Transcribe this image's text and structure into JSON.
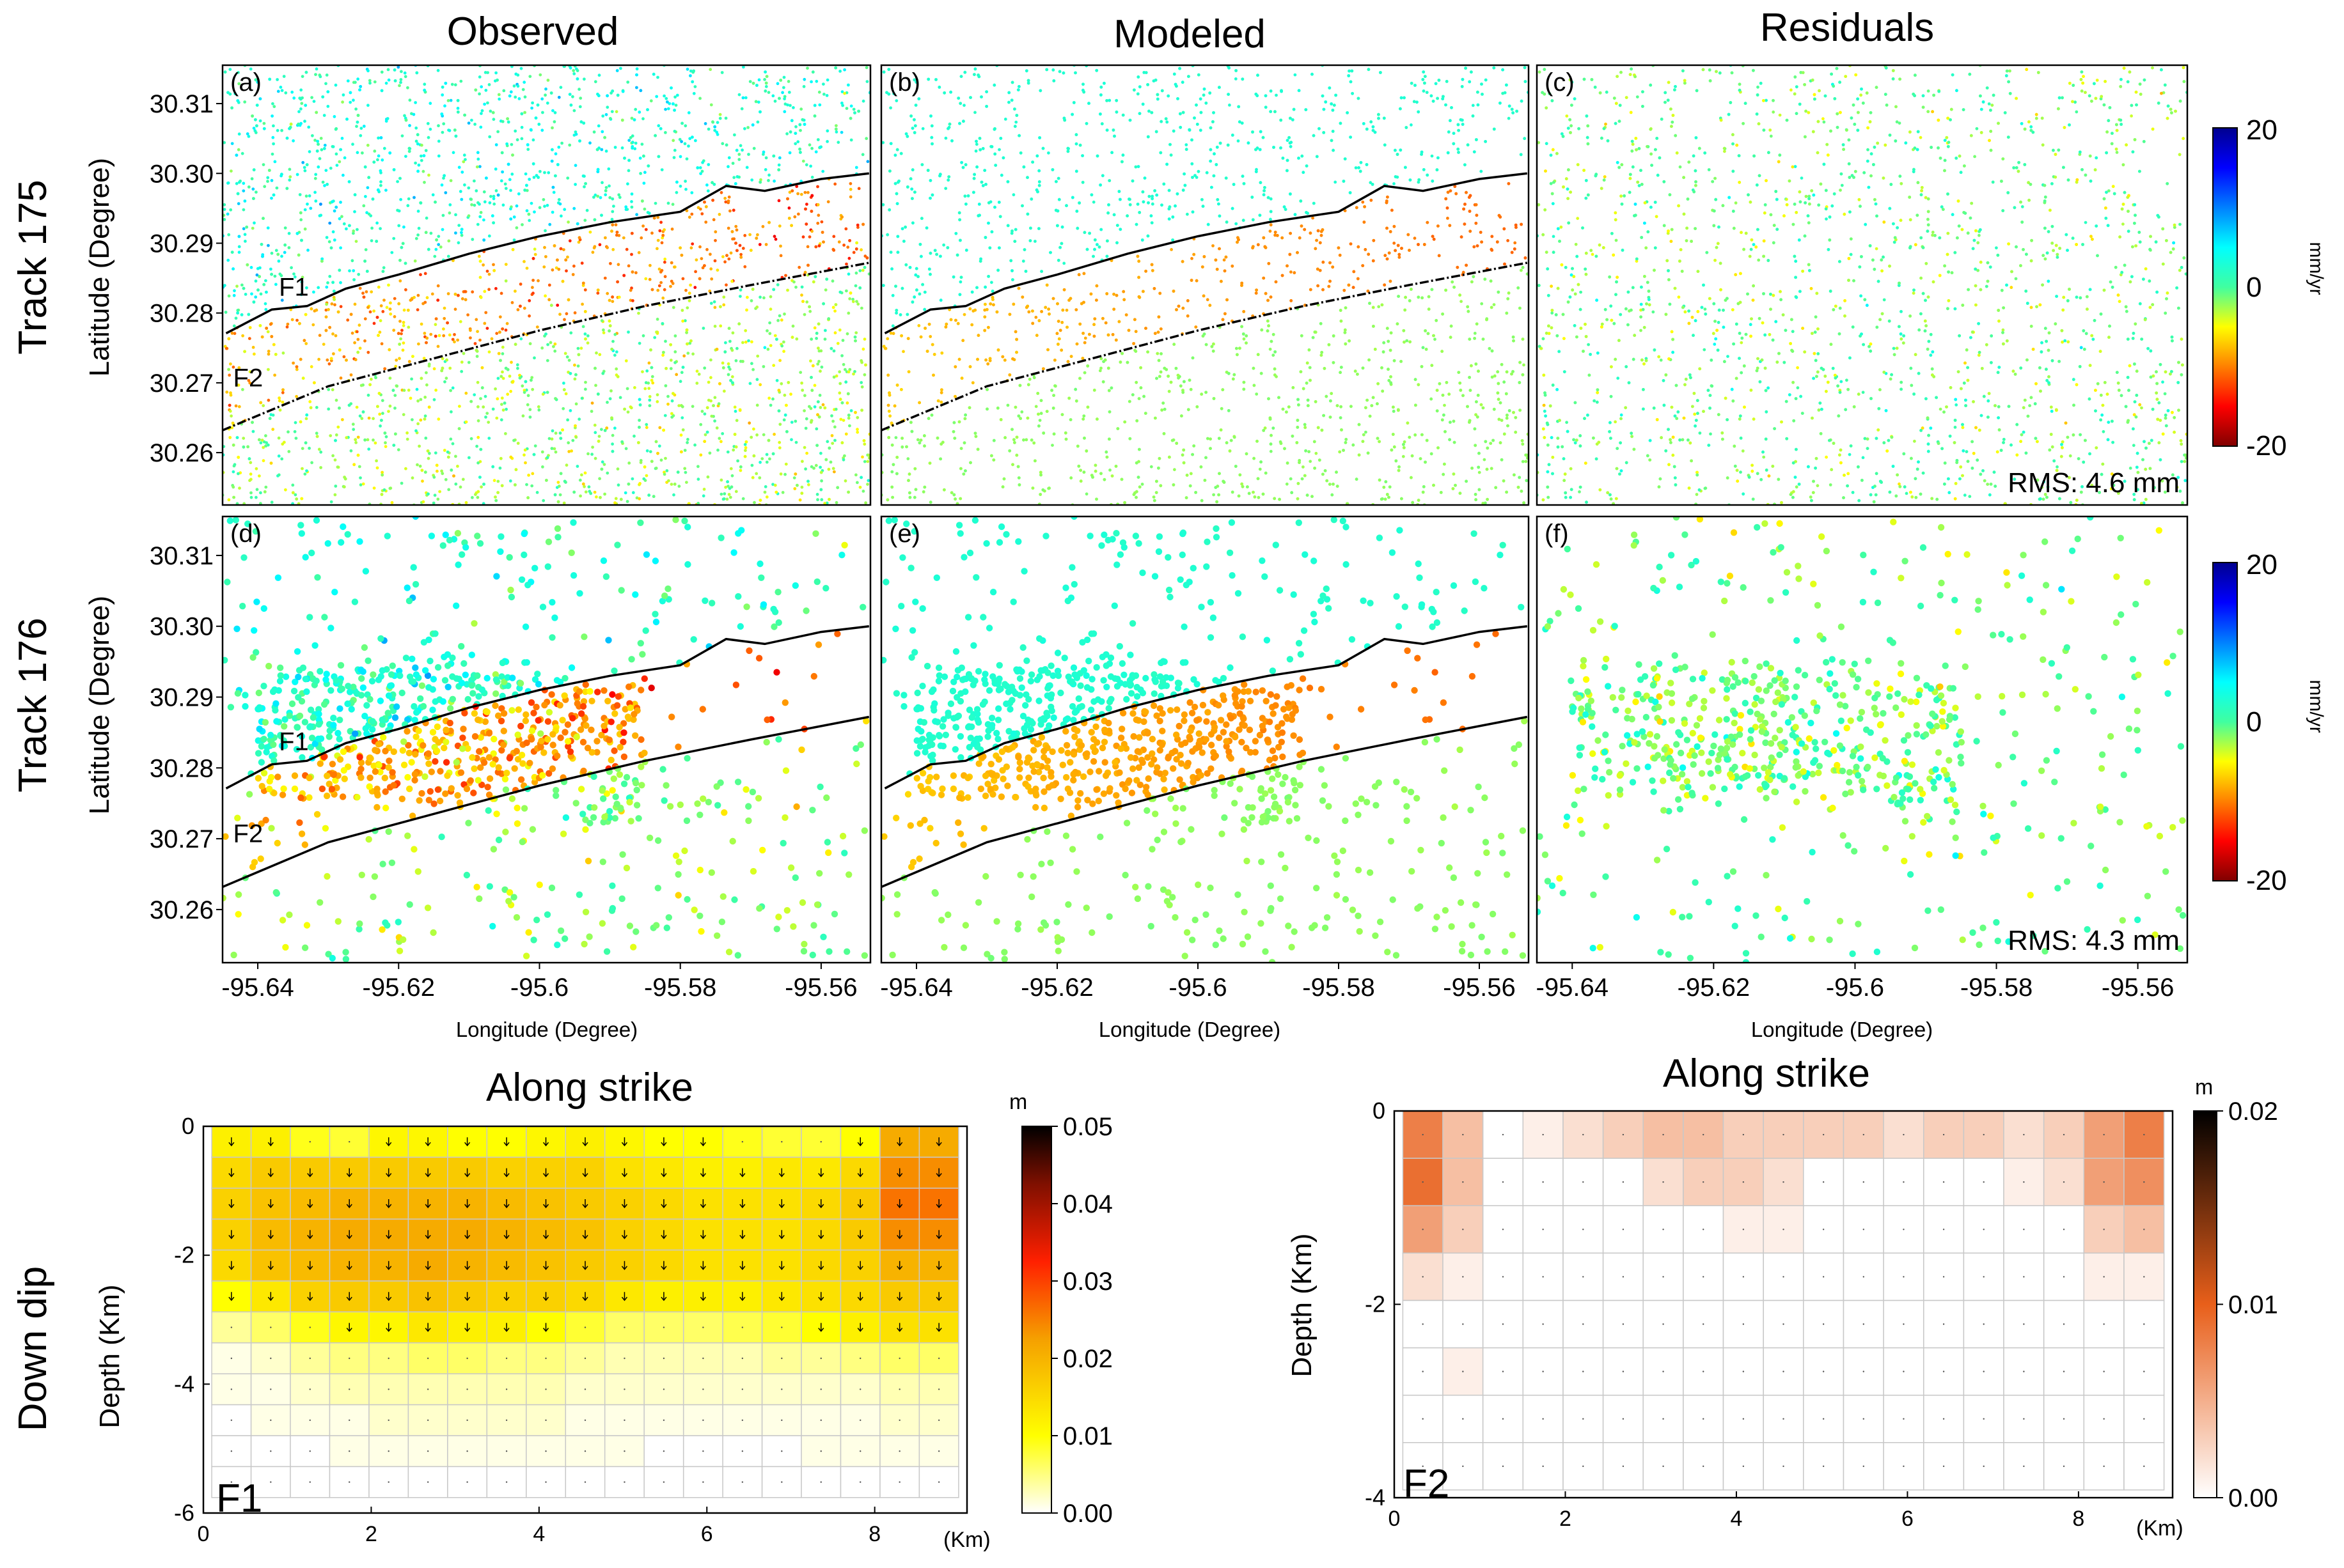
{
  "figure": {
    "column_titles": [
      "Observed",
      "Modeled",
      "Residuals"
    ],
    "row_titles": [
      "Track 175",
      "Track 176",
      "Down dip"
    ],
    "fault_labels": {
      "f1": "F1",
      "f2": "F2"
    }
  },
  "chart_data": [
    {
      "type": "scatter",
      "name": "InSAR LOS velocity maps",
      "xlabel": "Longitude (Degree)",
      "ylabel": "Latitude (Degree)",
      "xlim": [
        -95.645,
        -95.553
      ],
      "ylim": [
        30.2525,
        30.3155
      ],
      "x_ticks": [
        -95.64,
        -95.62,
        -95.6,
        -95.58,
        -95.56
      ],
      "x_tick_labels": [
        "-95.64",
        "-95.62",
        "-95.6",
        "-95.58",
        "-95.56"
      ],
      "y_ticks": [
        30.26,
        30.27,
        30.28,
        30.29,
        30.3,
        30.31
      ],
      "y_tick_labels": [
        "30.26",
        "30.27",
        "30.28",
        "30.29",
        "30.30",
        "30.31"
      ],
      "panels": [
        {
          "id": "a",
          "label": "(a)",
          "track": "Track 175",
          "kind": "Observed",
          "rms": ""
        },
        {
          "id": "b",
          "label": "(b)",
          "track": "Track 175",
          "kind": "Modeled",
          "rms": ""
        },
        {
          "id": "c",
          "label": "(c)",
          "track": "Track 175",
          "kind": "Residuals",
          "rms": "RMS: 4.6 mm"
        },
        {
          "id": "d",
          "label": "(d)",
          "track": "Track 176",
          "kind": "Observed",
          "rms": ""
        },
        {
          "id": "e",
          "label": "(e)",
          "track": "Track 176",
          "kind": "Modeled",
          "rms": ""
        },
        {
          "id": "f",
          "label": "(f)",
          "track": "Track 176",
          "kind": "Residuals",
          "rms": "RMS: 4.3 mm"
        }
      ],
      "fault_traces": {
        "F1": [
          [
            -95.6445,
            30.2771
          ],
          [
            -95.638,
            30.2805
          ],
          [
            -95.633,
            30.281
          ],
          [
            -95.6275,
            30.2835
          ],
          [
            -95.62,
            30.2855
          ],
          [
            -95.61,
            30.2885
          ],
          [
            -95.6,
            30.291
          ],
          [
            -95.59,
            30.293
          ],
          [
            -95.58,
            30.2945
          ],
          [
            -95.5735,
            30.2982
          ],
          [
            -95.568,
            30.2975
          ],
          [
            -95.56,
            30.2992
          ],
          [
            -95.5532,
            30.3
          ]
        ],
        "F2": [
          [
            -95.645,
            30.2632
          ],
          [
            -95.63,
            30.2695
          ],
          [
            -95.615,
            30.2735
          ],
          [
            -95.6,
            30.2775
          ],
          [
            -95.585,
            30.281
          ],
          [
            -95.57,
            30.284
          ],
          [
            -95.5532,
            30.2872
          ]
        ]
      },
      "colorbar": {
        "label": "mm/yr",
        "range": [
          -20,
          20
        ],
        "tick_labels": [
          "20",
          "0",
          "-20"
        ]
      },
      "rms_mm": {
        "track175": 4.6,
        "track176": 4.3
      }
    },
    {
      "type": "heatmap",
      "name": "F1 slip distribution",
      "title": "Along strike",
      "fault": "F1",
      "xlabel": "(Km)",
      "ylabel": "Depth (Km)",
      "xlim": [
        0,
        9.1
      ],
      "ylim": [
        -6,
        0
      ],
      "x_tick_labels": [
        "0",
        "2",
        "4",
        "6",
        "8"
      ],
      "y_tick_labels": [
        "0",
        "-2",
        "-4",
        "-6"
      ],
      "colorbar": {
        "label": "m",
        "range": [
          0,
          0.05
        ],
        "tick_labels": [
          "0.05",
          "0.04",
          "0.03",
          "0.02",
          "0.01",
          "0.00"
        ]
      },
      "slip_m": [
        [
          0.012,
          0.012,
          0.009,
          0.008,
          0.011,
          0.011,
          0.01,
          0.01,
          0.011,
          0.012,
          0.011,
          0.01,
          0.01,
          0.009,
          0.008,
          0.008,
          0.01,
          0.021,
          0.021
        ],
        [
          0.015,
          0.017,
          0.017,
          0.017,
          0.017,
          0.017,
          0.017,
          0.016,
          0.016,
          0.016,
          0.014,
          0.013,
          0.012,
          0.012,
          0.013,
          0.013,
          0.015,
          0.024,
          0.024
        ],
        [
          0.016,
          0.018,
          0.019,
          0.02,
          0.02,
          0.02,
          0.02,
          0.019,
          0.018,
          0.017,
          0.016,
          0.015,
          0.014,
          0.014,
          0.014,
          0.015,
          0.017,
          0.026,
          0.026
        ],
        [
          0.016,
          0.019,
          0.02,
          0.021,
          0.021,
          0.021,
          0.021,
          0.02,
          0.019,
          0.018,
          0.016,
          0.015,
          0.014,
          0.014,
          0.014,
          0.015,
          0.017,
          0.024,
          0.024
        ],
        [
          0.015,
          0.018,
          0.019,
          0.02,
          0.02,
          0.021,
          0.02,
          0.019,
          0.018,
          0.017,
          0.016,
          0.015,
          0.014,
          0.014,
          0.014,
          0.015,
          0.016,
          0.02,
          0.02
        ],
        [
          0.01,
          0.013,
          0.016,
          0.017,
          0.017,
          0.018,
          0.017,
          0.016,
          0.016,
          0.015,
          0.013,
          0.012,
          0.012,
          0.012,
          0.013,
          0.014,
          0.015,
          0.017,
          0.017
        ],
        [
          0.004,
          0.006,
          0.009,
          0.011,
          0.011,
          0.013,
          0.012,
          0.012,
          0.01,
          0.008,
          0.006,
          0.006,
          0.006,
          0.007,
          0.008,
          0.01,
          0.012,
          0.014,
          0.014
        ],
        [
          0.001,
          0.002,
          0.004,
          0.005,
          0.005,
          0.006,
          0.006,
          0.005,
          0.005,
          0.004,
          0.003,
          0.003,
          0.003,
          0.003,
          0.004,
          0.004,
          0.005,
          0.006,
          0.006
        ],
        [
          0.001,
          0.001,
          0.002,
          0.003,
          0.003,
          0.003,
          0.003,
          0.003,
          0.003,
          0.002,
          0.002,
          0.002,
          0.002,
          0.002,
          0.002,
          0.002,
          0.002,
          0.003,
          0.003
        ],
        [
          0.0,
          0.001,
          0.001,
          0.001,
          0.002,
          0.002,
          0.002,
          0.002,
          0.002,
          0.001,
          0.001,
          0.001,
          0.001,
          0.001,
          0.001,
          0.001,
          0.001,
          0.002,
          0.002
        ],
        [
          0.0,
          0.0,
          0.0,
          0.001,
          0.001,
          0.001,
          0.001,
          0.001,
          0.001,
          0.001,
          0.001,
          0.0,
          0.0,
          0.0,
          0.0,
          0.001,
          0.001,
          0.001,
          0.001
        ],
        [
          0.0,
          0.0,
          0.0,
          0.0,
          0.0,
          0.0,
          0.0,
          0.0,
          0.0,
          0.0,
          0.0,
          0.0,
          0.0,
          0.0,
          0.0,
          0.0,
          0.0,
          0.0,
          0.0
        ]
      ],
      "panel_label": "F1"
    },
    {
      "type": "heatmap",
      "name": "F2 slip distribution",
      "title": "Along strike",
      "fault": "F2",
      "xlabel": "(Km)",
      "ylabel": "Depth (Km)",
      "xlim": [
        0,
        9.1
      ],
      "ylim": [
        -4,
        0
      ],
      "x_tick_labels": [
        "0",
        "2",
        "4",
        "6",
        "8"
      ],
      "y_tick_labels": [
        "0",
        "-2",
        "-4"
      ],
      "colorbar": {
        "label": "m",
        "range": [
          0,
          0.02
        ],
        "tick_labels": [
          "0.02",
          "0.01",
          "0.00"
        ]
      },
      "slip_m": [
        [
          0.008,
          0.004,
          0.0,
          0.001,
          0.002,
          0.003,
          0.004,
          0.004,
          0.003,
          0.003,
          0.003,
          0.003,
          0.002,
          0.003,
          0.003,
          0.002,
          0.003,
          0.006,
          0.008
        ],
        [
          0.009,
          0.004,
          0.0,
          0.0,
          0.0,
          0.0,
          0.002,
          0.003,
          0.003,
          0.002,
          0.0,
          0.0,
          0.0,
          0.0,
          0.0,
          0.001,
          0.002,
          0.006,
          0.007
        ],
        [
          0.006,
          0.003,
          0.0,
          0.0,
          0.0,
          0.0,
          0.0,
          0.0,
          0.001,
          0.001,
          0.0,
          0.0,
          0.0,
          0.0,
          0.0,
          0.0,
          0.0,
          0.003,
          0.004
        ],
        [
          0.002,
          0.001,
          0.0,
          0.0,
          0.0,
          0.0,
          0.0,
          0.0,
          0.0,
          0.0,
          0.0,
          0.0,
          0.0,
          0.0,
          0.0,
          0.0,
          0.0,
          0.001,
          0.001
        ],
        [
          0.0,
          0.0,
          0.0,
          0.0,
          0.0,
          0.0,
          0.0,
          0.0,
          0.0,
          0.0,
          0.0,
          0.0,
          0.0,
          0.0,
          0.0,
          0.0,
          0.0,
          0.0,
          0.0
        ],
        [
          0.0,
          0.001,
          0.0,
          0.0,
          0.0,
          0.0,
          0.0,
          0.0,
          0.0,
          0.0,
          0.0,
          0.0,
          0.0,
          0.0,
          0.0,
          0.0,
          0.0,
          0.0,
          0.0
        ],
        [
          0.0,
          0.0,
          0.0,
          0.0,
          0.0,
          0.0,
          0.0,
          0.0,
          0.0,
          0.0,
          0.0,
          0.0,
          0.0,
          0.0,
          0.0,
          0.0,
          0.0,
          0.0,
          0.0
        ],
        [
          0.0,
          0.0,
          0.0,
          0.0,
          0.0,
          0.0,
          0.0,
          0.0,
          0.0,
          0.0,
          0.0,
          0.0,
          0.0,
          0.0,
          0.0,
          0.0,
          0.0,
          0.0,
          0.0
        ]
      ],
      "panel_label": "F2"
    }
  ]
}
